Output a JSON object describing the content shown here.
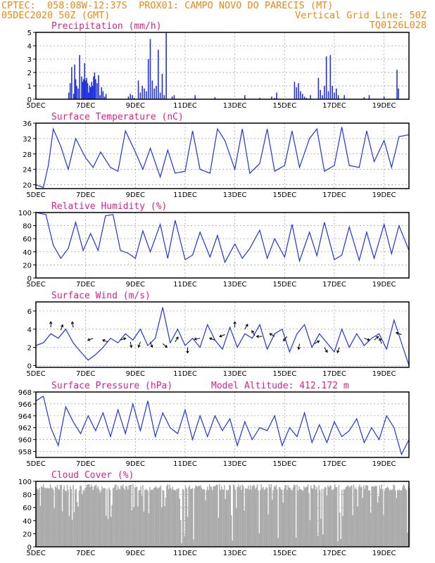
{
  "header": {
    "line1": "CPTEC:  058:08W-12:37S  PROX01: CAMPO NOVO DO PARECIS (MT)",
    "line2_left": "05DEC2020 50Z (GMT)",
    "line2_right": "Vertical Grid Line: 50Z",
    "line3_right": "TQ0126L028"
  },
  "colors": {
    "header": "#e88a1a",
    "title": "#e0208a",
    "series": "#2233dd",
    "cloud": "#aaaaaa"
  },
  "chart_data": [
    {
      "type": "bar",
      "title": "Precipitation (mm/h)",
      "ylim": [
        0,
        5
      ],
      "yticks": [
        0,
        1,
        2,
        3,
        4,
        5
      ],
      "grid": true,
      "x": [
        1.32,
        1.38,
        1.44,
        1.52,
        1.56,
        1.6,
        1.64,
        1.7,
        1.76,
        1.84,
        1.88,
        1.92,
        1.96,
        2.0,
        2.04,
        2.08,
        2.12,
        2.16,
        2.2,
        2.24,
        2.28,
        2.32,
        2.36,
        2.4,
        2.46,
        2.52,
        2.58,
        2.64,
        2.7,
        2.76,
        2.82,
        3.72,
        3.8,
        3.88,
        3.96,
        4.12,
        4.2,
        4.28,
        4.36,
        4.44,
        4.52,
        4.6,
        4.68,
        4.76,
        4.84,
        4.92,
        5.0,
        5.08,
        5.16,
        5.24,
        5.48,
        5.56,
        6.4,
        7.2,
        8.4,
        9.0,
        9.48,
        9.6,
        9.68,
        10.4,
        10.48,
        10.56,
        10.64,
        10.72,
        10.8,
        10.88,
        11.04,
        11.36,
        11.44,
        11.52,
        11.6,
        11.68,
        11.76,
        11.84,
        11.92,
        12.0,
        12.08,
        12.16,
        12.4,
        13.2,
        13.4,
        14.0,
        14.52,
        14.58
      ],
      "values": [
        0.5,
        1.2,
        2.4,
        0.4,
        2.6,
        1.5,
        1.0,
        0.8,
        3.3,
        1.7,
        1.3,
        1.5,
        2.7,
        1.4,
        1.6,
        1.2,
        0.5,
        1.0,
        0.9,
        1.3,
        1.0,
        1.7,
        2.0,
        1.5,
        1.2,
        1.8,
        0.3,
        0.9,
        0.6,
        0.2,
        0.4,
        0.2,
        0.4,
        0.3,
        0.1,
        1.4,
        0.5,
        1.0,
        0.8,
        0.6,
        3.0,
        4.5,
        1.4,
        0.8,
        1.0,
        3.7,
        0.5,
        1.9,
        0.3,
        5.0,
        0.2,
        0.3,
        0.3,
        0.15,
        0.3,
        0.1,
        0.2,
        0.1,
        0.5,
        1.3,
        0.9,
        1.2,
        0.6,
        0.4,
        0.2,
        0.1,
        0.3,
        1.6,
        0.7,
        0.3,
        1.0,
        3.2,
        0.6,
        3.3,
        1.0,
        0.5,
        0.8,
        0.3,
        0.3,
        0.15,
        0.3,
        0.2,
        2.2,
        0.8
      ]
    },
    {
      "type": "line",
      "title": "Surface Temperature (nC)",
      "ylim": [
        19,
        36
      ],
      "yticks": [
        20,
        24,
        28,
        32,
        36
      ],
      "grid": true,
      "x": [
        0,
        0.3,
        0.5,
        0.7,
        1.0,
        1.3,
        1.6,
        2.0,
        2.3,
        2.6,
        3.0,
        3.3,
        3.6,
        4.0,
        4.3,
        4.6,
        5.0,
        5.3,
        5.6,
        6.0,
        6.3,
        6.6,
        7.0,
        7.3,
        7.6,
        8.0,
        8.3,
        8.6,
        9.0,
        9.3,
        9.6,
        10.0,
        10.3,
        10.6,
        11.0,
        11.3,
        11.6,
        12.0,
        12.3,
        12.6,
        13.0,
        13.3,
        13.6,
        14.0,
        14.3,
        14.6,
        15.0
      ],
      "values": [
        20,
        19.3,
        25,
        34.5,
        30,
        24,
        32,
        27,
        24.5,
        28.5,
        24.5,
        23.5,
        34,
        28.5,
        24,
        29.5,
        22,
        29,
        23,
        23.5,
        34,
        24,
        23,
        34.5,
        31.5,
        24,
        34.5,
        23,
        25.5,
        34.5,
        23.5,
        25,
        34,
        24.5,
        32,
        34.5,
        23.5,
        25,
        35,
        25,
        24.5,
        34,
        26,
        31.5,
        24.5,
        32.5,
        33
      ]
    },
    {
      "type": "line",
      "title": "Relative Humidity (%)",
      "ylim": [
        0,
        100
      ],
      "yticks": [
        0,
        20,
        40,
        60,
        80,
        100
      ],
      "grid": true,
      "x": [
        0,
        0.4,
        0.7,
        1.0,
        1.3,
        1.6,
        1.9,
        2.2,
        2.5,
        2.8,
        3.1,
        3.4,
        3.7,
        4.0,
        4.3,
        4.6,
        5.0,
        5.3,
        5.6,
        6.0,
        6.3,
        6.6,
        7.0,
        7.3,
        7.6,
        8.0,
        8.3,
        8.6,
        9.0,
        9.3,
        9.6,
        10.0,
        10.3,
        10.6,
        11.0,
        11.3,
        11.6,
        12.0,
        12.3,
        12.6,
        13.0,
        13.3,
        13.6,
        14.0,
        14.3,
        14.6,
        15.0
      ],
      "values": [
        100,
        97,
        50,
        30,
        45,
        85,
        42,
        68,
        42,
        95,
        97,
        42,
        38,
        30,
        72,
        40,
        82,
        30,
        88,
        28,
        35,
        70,
        32,
        65,
        24,
        52,
        30,
        45,
        73,
        30,
        60,
        32,
        82,
        26,
        70,
        34,
        85,
        28,
        35,
        78,
        27,
        70,
        30,
        82,
        37,
        80,
        42
      ]
    },
    {
      "type": "line",
      "title": "Surface Wind (m/s)",
      "ylim": [
        -0.2,
        7
      ],
      "yticks": [
        0,
        2,
        4,
        6
      ],
      "grid": true,
      "x": [
        0,
        0.3,
        0.6,
        0.9,
        1.2,
        1.5,
        1.8,
        2.1,
        2.4,
        2.7,
        3.0,
        3.3,
        3.6,
        3.9,
        4.2,
        4.5,
        4.8,
        5.1,
        5.4,
        5.7,
        6.0,
        6.3,
        6.6,
        6.9,
        7.2,
        7.5,
        7.8,
        8.1,
        8.4,
        8.7,
        9.0,
        9.3,
        9.6,
        9.9,
        10.2,
        10.5,
        10.8,
        11.1,
        11.4,
        11.7,
        12.0,
        12.3,
        12.6,
        12.9,
        13.2,
        13.5,
        13.8,
        14.1,
        14.4,
        14.7,
        15.0
      ],
      "values": [
        2.2,
        2.5,
        3.5,
        3.0,
        4.0,
        2.5,
        1.5,
        0.6,
        1.2,
        2.0,
        3.0,
        2.5,
        3.5,
        2.8,
        4.0,
        2.2,
        3.0,
        6.4,
        2.5,
        4.0,
        2.2,
        3.0,
        2.0,
        4.5,
        2.8,
        1.8,
        4.2,
        2.0,
        3.5,
        3.0,
        4.5,
        1.8,
        3.5,
        4.0,
        1.5,
        3.5,
        4.5,
        2.0,
        3.5,
        2.5,
        1.5,
        4.0,
        2.0,
        3.5,
        2.2,
        3.0,
        3.5,
        1.8,
        5.0,
        2.5,
        0
      ]
    },
    {
      "type": "line",
      "title": "Surface Pressure (hPa)",
      "annotation": "Model Altitude: 412.172 m",
      "ylim": [
        957,
        968
      ],
      "yticks": [
        958,
        960,
        962,
        964,
        966,
        968
      ],
      "grid": true,
      "x": [
        0,
        0.3,
        0.6,
        0.9,
        1.2,
        1.5,
        1.8,
        2.1,
        2.4,
        2.7,
        3.0,
        3.3,
        3.6,
        3.9,
        4.2,
        4.5,
        4.8,
        5.1,
        5.4,
        5.7,
        6.0,
        6.3,
        6.6,
        6.9,
        7.2,
        7.5,
        7.8,
        8.1,
        8.4,
        8.7,
        9.0,
        9.3,
        9.6,
        9.9,
        10.2,
        10.5,
        10.8,
        11.1,
        11.4,
        11.7,
        12.0,
        12.3,
        12.6,
        12.9,
        13.2,
        13.5,
        13.8,
        14.1,
        14.4,
        14.7,
        15.0
      ],
      "values": [
        966.5,
        967.3,
        962,
        959,
        965.5,
        963,
        961,
        964,
        961.5,
        964.5,
        960.5,
        965,
        961,
        966,
        961.5,
        966.5,
        960.5,
        964.5,
        962,
        961,
        965,
        960,
        964,
        960.5,
        964,
        961.5,
        963.5,
        959,
        963,
        960,
        962,
        961.5,
        964,
        959,
        962,
        960.5,
        964.5,
        959.5,
        962.5,
        959.5,
        963,
        960.5,
        961.5,
        963.5,
        959.5,
        962,
        960,
        964,
        962,
        957.5,
        960
      ]
    },
    {
      "type": "bar",
      "title": "Cloud Cover (%)",
      "ylim": [
        0,
        100
      ],
      "yticks": [
        0,
        20,
        40,
        60,
        80,
        100
      ],
      "grid": true,
      "x_step": 0.04,
      "values_desc": "cloud cover hourly"
    }
  ],
  "x_axis": {
    "labels": [
      "5DEC",
      "7DEC",
      "9DEC",
      "11DEC",
      "13DEC",
      "15DEC",
      "17DEC",
      "19DEC"
    ],
    "positions": [
      0,
      2,
      4,
      6,
      8,
      10,
      12,
      14
    ],
    "range": [
      0,
      15
    ]
  }
}
